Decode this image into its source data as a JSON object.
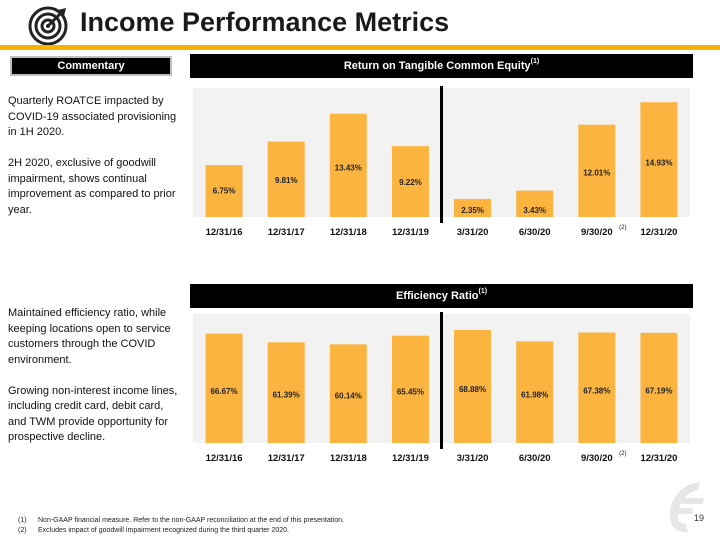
{
  "page": {
    "title": "Income Performance Metrics",
    "page_number": "19",
    "accent_color": "#f5b300",
    "bar_color": "#fbb440"
  },
  "commentary": {
    "header": "Commentary",
    "block1": [
      "Quarterly ROATCE impacted by COVID-19 associated provisioning in 1H 2020.",
      "2H 2020, exclusive of goodwill impairment, shows continual improvement as compared to prior year."
    ],
    "block2": [
      "Maintained efficiency ratio, while keeping locations open to service customers through the COVID environment.",
      "Growing non-interest income lines, including credit card, debit card, and TWM provide opportunity for prospective decline."
    ]
  },
  "chart_data": [
    {
      "type": "bar",
      "title": "Return on Tangible Common Equity",
      "title_note": "(1)",
      "categories": [
        "12/31/16",
        "12/31/17",
        "12/31/18",
        "12/31/19",
        "3/31/20",
        "6/30/20",
        "9/30/20",
        "12/31/20"
      ],
      "category_notes": [
        "",
        "",
        "",
        "",
        "",
        "",
        "(2)",
        ""
      ],
      "values": [
        6.75,
        9.81,
        13.43,
        9.22,
        2.35,
        3.43,
        12.01,
        14.93
      ],
      "labels": [
        "6.75%",
        "9.81%",
        "13.43%",
        "9.22%",
        "2.35%",
        "3.43%",
        "12.01%",
        "14.93%"
      ],
      "ylim": [
        0,
        16
      ],
      "divider_after_index": 3,
      "grid": false
    },
    {
      "type": "bar",
      "title": "Efficiency Ratio",
      "title_note": "(1)",
      "categories": [
        "12/31/16",
        "12/31/17",
        "12/31/18",
        "12/31/19",
        "3/31/20",
        "6/30/20",
        "9/30/20",
        "12/31/20"
      ],
      "category_notes": [
        "",
        "",
        "",
        "",
        "",
        "",
        "(2)",
        ""
      ],
      "values": [
        66.67,
        61.39,
        60.14,
        65.45,
        68.88,
        61.98,
        67.38,
        67.19
      ],
      "labels": [
        "66.67%",
        "61.39%",
        "60.14%",
        "65.45%",
        "68.88%",
        "61.98%",
        "67.38%",
        "67.19%"
      ],
      "ylim": [
        0,
        75
      ],
      "divider_after_index": 3,
      "grid": false
    }
  ],
  "footnotes": [
    {
      "num": "(1)",
      "text": "Non-GAAP financial measure.  Refer to the non-GAAP reconciliation at the end of this presentation."
    },
    {
      "num": "(2)",
      "text": "Excludes impact of goodwill impairment recognized during the third quarter 2020."
    }
  ]
}
